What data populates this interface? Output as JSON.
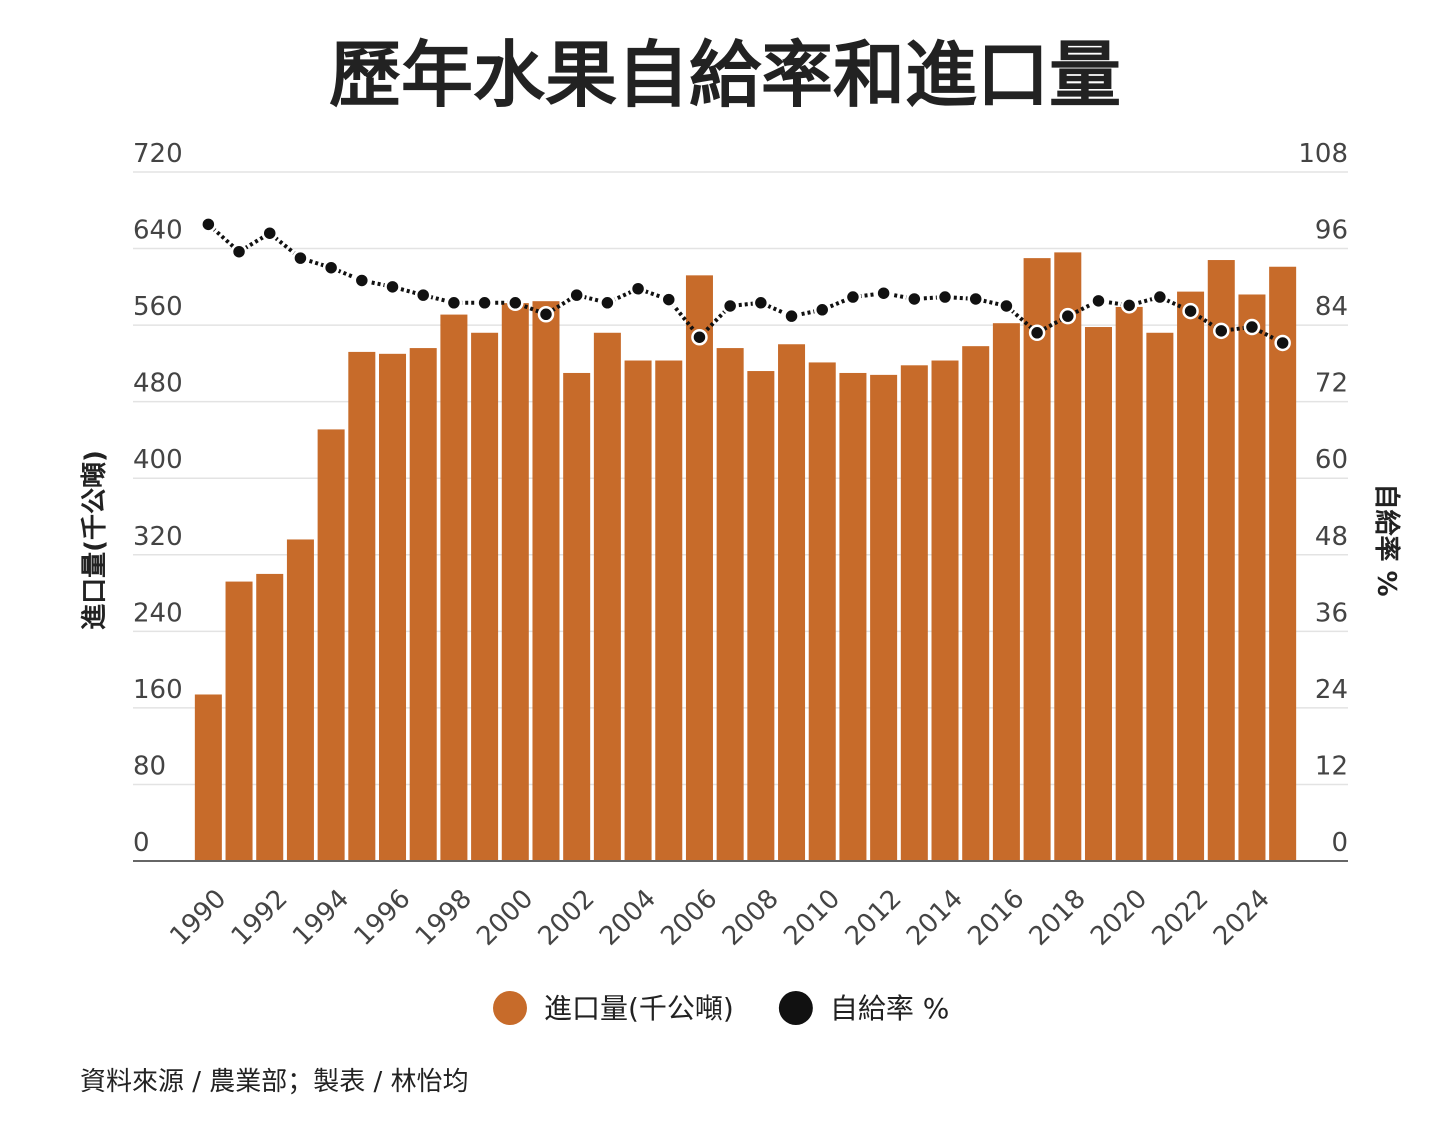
{
  "chart_data": {
    "type": "bar-line",
    "title": "歷年水果自給率和進口量",
    "y_label": "進口量(千公噸)",
    "y2_label": "自給率 %",
    "source": "資料來源 / 農業部；製表 / 林怡均",
    "categories": [
      "1990",
      null,
      "1992",
      null,
      "1994",
      null,
      "1996",
      null,
      "1998",
      null,
      "2000",
      null,
      "2002",
      null,
      "2004",
      null,
      "2006",
      null,
      "2008",
      null,
      "2010",
      null,
      "2012",
      null,
      "2014",
      null,
      "2016",
      null,
      "2018",
      null,
      "2020",
      null,
      "2022",
      null,
      "2024",
      null
    ],
    "series": [
      {
        "name": "進口量(千公噸)",
        "type": "bar",
        "color": "#c76b2a",
        "values": [
          174,
          292,
          300,
          336,
          451,
          532,
          530,
          536,
          571,
          552,
          583,
          585,
          510,
          552,
          523,
          523,
          612,
          536,
          512,
          540,
          521,
          510,
          508,
          518,
          523,
          538,
          562,
          630,
          636,
          558,
          579,
          552,
          595,
          628,
          592,
          621
        ]
      },
      {
        "name": "自給率 %",
        "type": "line",
        "color": "#111111",
        "axis": "y2",
        "values": [
          99.8,
          95.5,
          98.4,
          94.5,
          93,
          91,
          90,
          88.7,
          87.5,
          87.5,
          87.5,
          85.7,
          88.7,
          87.5,
          89.7,
          88,
          82.1,
          87,
          87.5,
          85.4,
          86.4,
          88.4,
          89,
          88.1,
          88.4,
          88.1,
          87,
          82.8,
          85.4,
          87.8,
          87.1,
          88.4,
          86.2,
          83.1,
          83.7,
          81.2
        ]
      }
    ],
    "ylim": [
      0,
      720
    ],
    "yticks": [
      0,
      80,
      160,
      240,
      320,
      400,
      480,
      560,
      640,
      720
    ],
    "y2lim": [
      0,
      108
    ],
    "y2ticks": [
      0,
      12,
      24,
      36,
      48,
      60,
      72,
      84,
      96,
      108
    ],
    "grid": true
  }
}
